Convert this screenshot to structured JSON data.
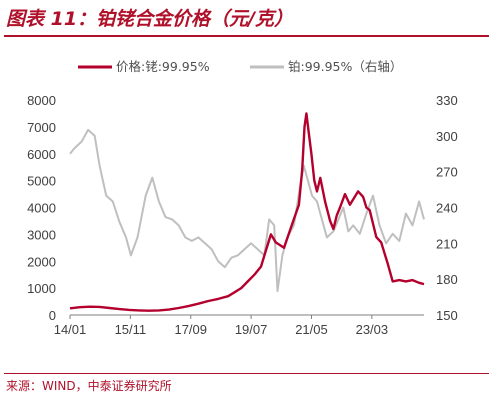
{
  "header": {
    "title": "图表 11：铂铑合金价格（元/克）"
  },
  "footer": {
    "source": "来源：WIND，中泰证券研究所"
  },
  "colors": {
    "accent": "#b0112a",
    "series_primary": "#b3002d",
    "series_secondary": "#bfbfbf"
  },
  "chart_data": {
    "type": "line",
    "title": "",
    "legend_placement": "top",
    "grid": false,
    "x_axis": {
      "tick_labels": [
        "14/01",
        "15/11",
        "17/09",
        "19/07",
        "21/05",
        "23/03"
      ],
      "tick_positions": [
        2014.0,
        2015.833,
        2017.667,
        2019.5,
        2021.333,
        2023.167
      ],
      "range": [
        2014.0,
        2024.75
      ]
    },
    "y_left": {
      "range": [
        0,
        8000
      ],
      "ticks": [
        "0",
        "1000",
        "2000",
        "3000",
        "4000",
        "5000",
        "6000",
        "7000",
        "8000"
      ]
    },
    "y_right": {
      "range": [
        150,
        330
      ],
      "ticks": [
        "150",
        "180",
        "210",
        "240",
        "270",
        "300",
        "330"
      ]
    },
    "series": [
      {
        "name": "价格:铑:99.95%",
        "axis": "left",
        "color": "#b3002d",
        "x": [
          2014.0,
          2014.3,
          2014.6,
          2014.9,
          2015.2,
          2015.5,
          2015.8,
          2016.1,
          2016.4,
          2016.7,
          2017.0,
          2017.3,
          2017.6,
          2017.9,
          2018.2,
          2018.5,
          2018.8,
          2019.0,
          2019.2,
          2019.4,
          2019.6,
          2019.8,
          2019.95,
          2020.1,
          2020.25,
          2020.5,
          2020.75,
          2020.95,
          2021.05,
          2021.12,
          2021.18,
          2021.25,
          2021.33,
          2021.42,
          2021.5,
          2021.6,
          2021.75,
          2021.9,
          2022.0,
          2022.1,
          2022.2,
          2022.35,
          2022.5,
          2022.6,
          2022.75,
          2022.9,
          2023.0,
          2023.1,
          2023.2,
          2023.3,
          2023.45,
          2023.55,
          2023.65,
          2023.8,
          2024.0,
          2024.2,
          2024.4,
          2024.6,
          2024.75
        ],
        "y": [
          250,
          290,
          310,
          300,
          260,
          220,
          190,
          170,
          160,
          170,
          200,
          260,
          330,
          420,
          520,
          600,
          700,
          850,
          1000,
          1250,
          1500,
          1800,
          2400,
          3000,
          2700,
          2500,
          3400,
          4100,
          5400,
          7000,
          7500,
          6800,
          6000,
          5000,
          4600,
          5100,
          4200,
          3500,
          3200,
          3700,
          4000,
          4500,
          4100,
          4300,
          4600,
          4400,
          4000,
          3900,
          3400,
          2900,
          2700,
          2300,
          1900,
          1250,
          1300,
          1250,
          1300,
          1200,
          1150
        ]
      },
      {
        "name": "铂:99.95%（右轴）",
        "axis": "right",
        "color": "#bfbfbf",
        "x": [
          2014.0,
          2014.15,
          2014.35,
          2014.55,
          2014.75,
          2014.9,
          2015.1,
          2015.3,
          2015.5,
          2015.7,
          2015.85,
          2016.05,
          2016.3,
          2016.5,
          2016.7,
          2016.9,
          2017.1,
          2017.3,
          2017.5,
          2017.7,
          2017.9,
          2018.1,
          2018.3,
          2018.5,
          2018.7,
          2018.9,
          2019.1,
          2019.3,
          2019.5,
          2019.7,
          2019.9,
          2020.05,
          2020.2,
          2020.3,
          2020.45,
          2020.6,
          2020.8,
          2021.0,
          2021.1,
          2021.2,
          2021.35,
          2021.5,
          2021.65,
          2021.8,
          2022.0,
          2022.15,
          2022.3,
          2022.45,
          2022.6,
          2022.8,
          2023.0,
          2023.2,
          2023.4,
          2023.6,
          2023.8,
          2024.0,
          2024.2,
          2024.4,
          2024.6,
          2024.75
        ],
        "y": [
          285,
          290,
          295,
          305,
          300,
          275,
          250,
          245,
          228,
          215,
          200,
          215,
          250,
          265,
          245,
          232,
          230,
          225,
          215,
          212,
          215,
          210,
          205,
          195,
          190,
          198,
          200,
          205,
          210,
          205,
          200,
          230,
          225,
          170,
          200,
          215,
          225,
          260,
          275,
          265,
          250,
          245,
          230,
          215,
          220,
          230,
          240,
          220,
          225,
          218,
          235,
          250,
          225,
          210,
          218,
          212,
          235,
          225,
          245,
          230
        ]
      }
    ]
  }
}
